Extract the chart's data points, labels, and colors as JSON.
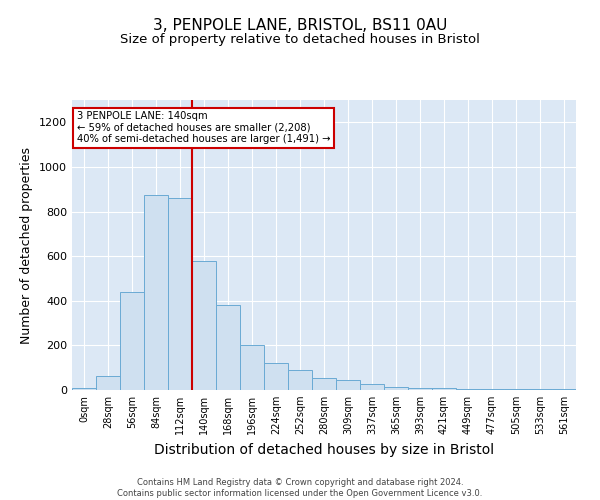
{
  "title1": "3, PENPOLE LANE, BRISTOL, BS11 0AU",
  "title2": "Size of property relative to detached houses in Bristol",
  "xlabel": "Distribution of detached houses by size in Bristol",
  "ylabel": "Number of detached properties",
  "bar_values": [
    10,
    65,
    440,
    875,
    860,
    580,
    380,
    200,
    120,
    90,
    55,
    45,
    28,
    15,
    10,
    8,
    5,
    4,
    3,
    3,
    3
  ],
  "bar_labels": [
    "0sqm",
    "28sqm",
    "56sqm",
    "84sqm",
    "112sqm",
    "140sqm",
    "168sqm",
    "196sqm",
    "224sqm",
    "252sqm",
    "280sqm",
    "309sqm",
    "337sqm",
    "365sqm",
    "393sqm",
    "421sqm",
    "449sqm",
    "477sqm",
    "505sqm",
    "533sqm",
    "561sqm"
  ],
  "bar_color": "#cfe0f0",
  "bar_edge_color": "#6aaad4",
  "vline_x": 5,
  "vline_color": "#cc0000",
  "annotation_text": "3 PENPOLE LANE: 140sqm\n← 59% of detached houses are smaller (2,208)\n40% of semi-detached houses are larger (1,491) →",
  "annotation_box_color": "#ffffff",
  "annotation_box_edge": "#cc0000",
  "ylim": [
    0,
    1300
  ],
  "yticks": [
    0,
    200,
    400,
    600,
    800,
    1000,
    1200
  ],
  "background_color": "#dce8f5",
  "footer": "Contains HM Land Registry data © Crown copyright and database right 2024.\nContains public sector information licensed under the Open Government Licence v3.0.",
  "title1_fontsize": 11,
  "title2_fontsize": 9.5,
  "xlabel_fontsize": 10,
  "ylabel_fontsize": 9,
  "tick_fontsize": 7,
  "footer_fontsize": 6
}
